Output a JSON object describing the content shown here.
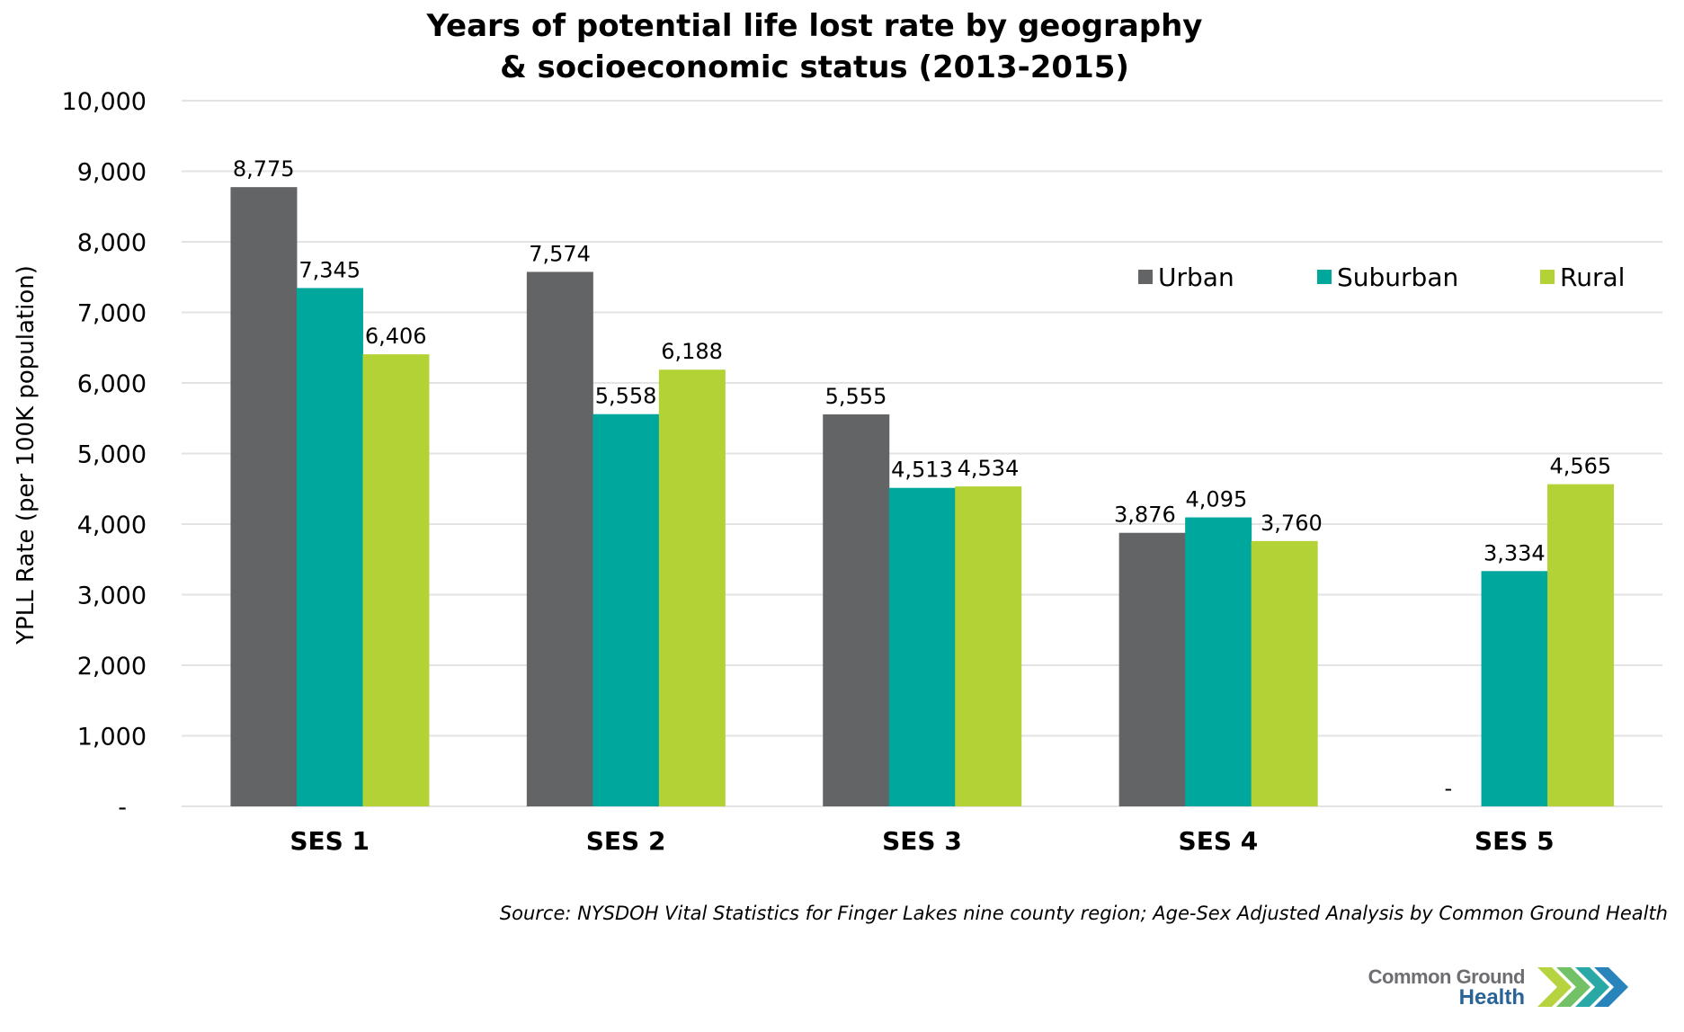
{
  "chart_data": {
    "type": "bar",
    "title_lines": [
      "Years of potential life lost rate by geography",
      "& socioeconomic status (2013-2015)"
    ],
    "xlabel": "",
    "ylabel": "YPLL Rate  (per 100K population)",
    "ylim": [
      0,
      10000
    ],
    "yticks": [
      0,
      1000,
      2000,
      3000,
      4000,
      5000,
      6000,
      7000,
      8000,
      9000,
      10000
    ],
    "ytick_labels": [
      "-",
      "1,000",
      "2,000",
      "3,000",
      "4,000",
      "5,000",
      "6,000",
      "7,000",
      "8,000",
      "9,000",
      "10,000"
    ],
    "grid": true,
    "legend_position": "top-right",
    "categories": [
      "SES 1",
      "SES 2",
      "SES 3",
      "SES 4",
      "SES 5"
    ],
    "series": [
      {
        "name": "Urban",
        "color": "#636466",
        "values": [
          8775,
          7574,
          5555,
          3876,
          0
        ],
        "labels": [
          "8,775",
          "7,574",
          "5,555",
          "3,876",
          "-"
        ]
      },
      {
        "name": "Suburban",
        "color": "#00A79D",
        "values": [
          7345,
          5558,
          4513,
          4095,
          3334
        ],
        "labels": [
          "7,345",
          "5,558",
          "4,513",
          "4,095",
          "3,334"
        ]
      },
      {
        "name": "Rural",
        "color": "#B2D235",
        "values": [
          6406,
          6188,
          4534,
          3760,
          4565
        ],
        "labels": [
          "6,406",
          "6,188",
          "4,534",
          "3,760",
          "4,565"
        ]
      }
    ]
  },
  "source": "Source: NYSDOH Vital Statistics for Finger Lakes nine county region; Age-Sex Adjusted Analysis by Common Ground Health",
  "logo": {
    "line1": "Common Ground",
    "line2": "Health",
    "colors": [
      "#B2D235",
      "#6BBE5E",
      "#1FA3A0",
      "#1D7DB8",
      "#1F4E8C"
    ]
  }
}
